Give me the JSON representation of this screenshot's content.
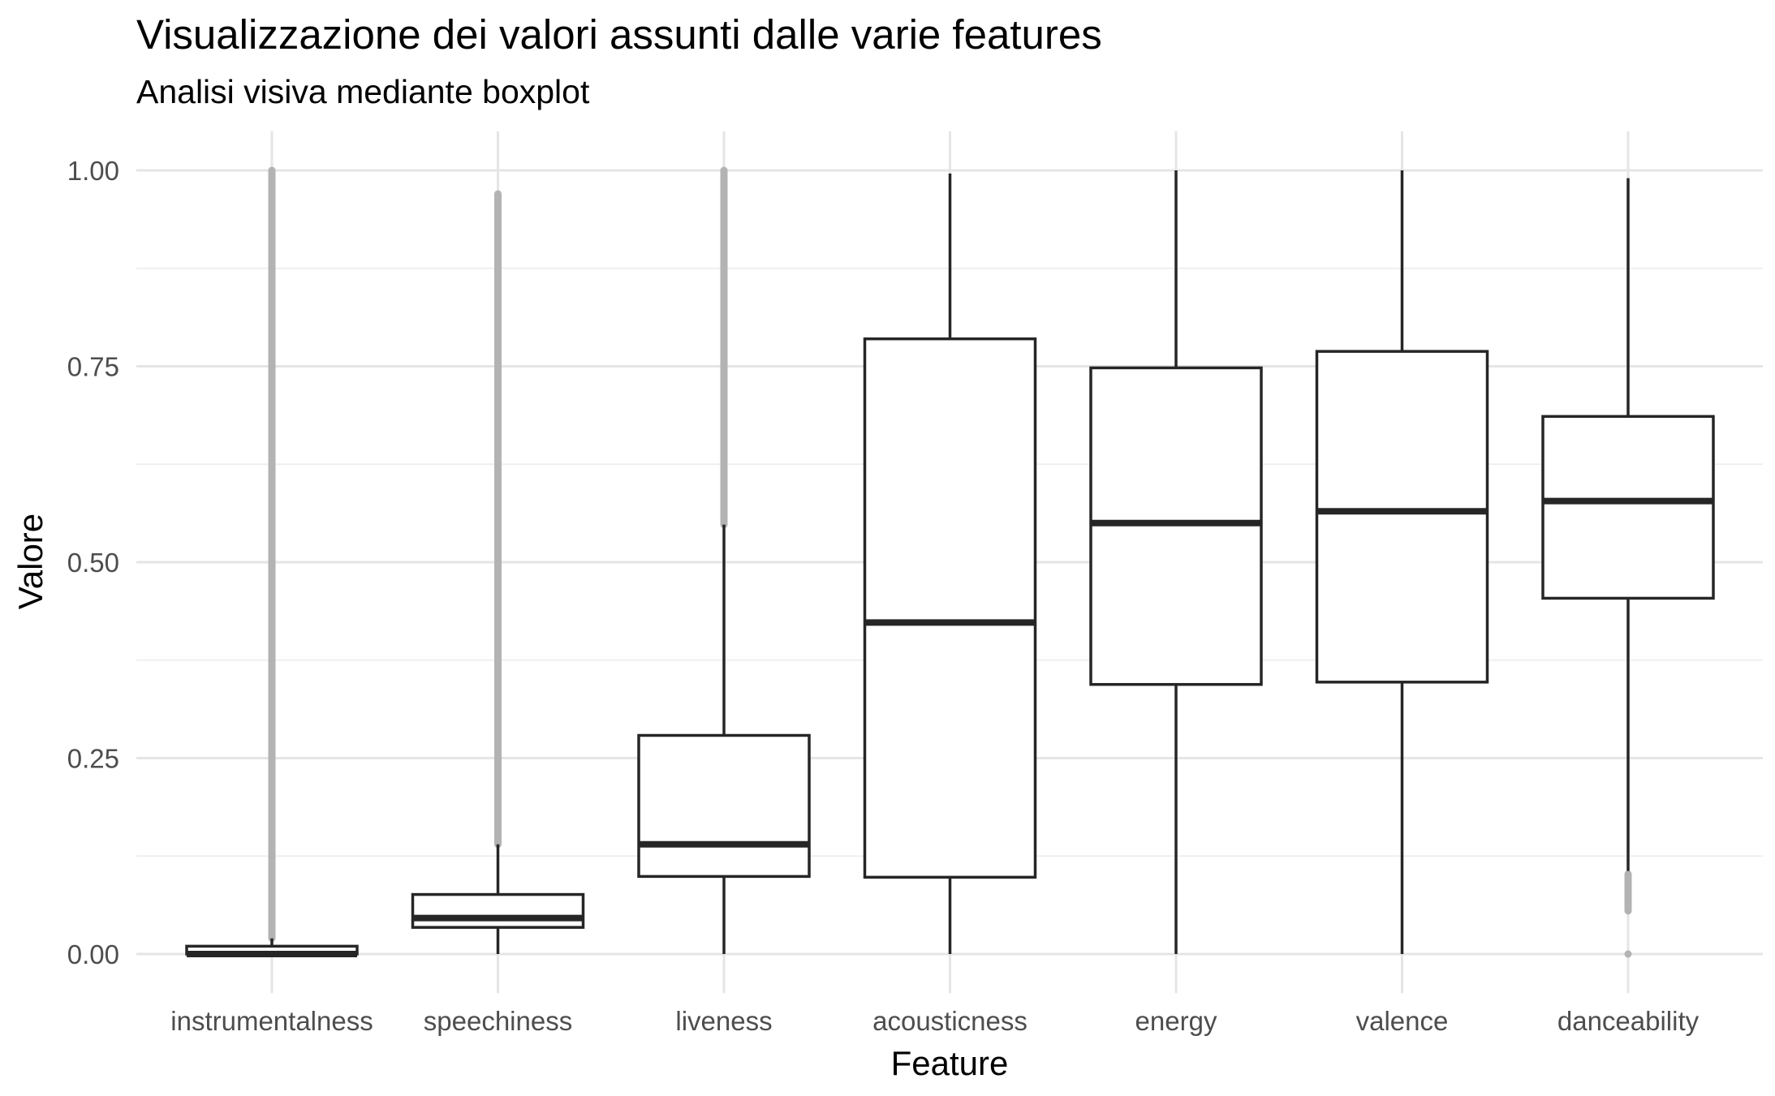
{
  "chart_data": {
    "type": "boxplot",
    "title": "Visualizzazione dei valori assunti dalle varie features",
    "subtitle": "Analisi visiva mediante boxplot",
    "xlabel": "Feature",
    "ylabel": "Valore",
    "ylim": [
      -0.05,
      1.05
    ],
    "yticks": [
      0.0,
      0.25,
      0.5,
      0.75,
      1.0
    ],
    "ytick_labels": [
      "0.00",
      "0.25",
      "0.50",
      "0.75",
      "1.00"
    ],
    "grid": true,
    "legend": "none",
    "colors": {
      "box_stroke": "#262626",
      "outlier": "#b3b3b3",
      "grid_major": "#e5e5e5",
      "grid_minor": "#efefef"
    },
    "categories": [
      "instrumentalness",
      "speechiness",
      "liveness",
      "acousticness",
      "energy",
      "valence",
      "danceability"
    ],
    "boxes": [
      {
        "category": "instrumentalness",
        "lower_whisker": 0.0,
        "q1": 0.0,
        "median": 0.0,
        "q3": 0.01,
        "upper_whisker": 0.02,
        "outlier_ranges": [
          [
            0.02,
            1.0
          ]
        ]
      },
      {
        "category": "speechiness",
        "lower_whisker": 0.0,
        "q1": 0.034,
        "median": 0.046,
        "q3": 0.076,
        "upper_whisker": 0.14,
        "outlier_ranges": [
          [
            0.14,
            0.97
          ]
        ]
      },
      {
        "category": "liveness",
        "lower_whisker": 0.0,
        "q1": 0.099,
        "median": 0.14,
        "q3": 0.279,
        "upper_whisker": 0.548,
        "outlier_ranges": [
          [
            0.548,
            1.0
          ]
        ]
      },
      {
        "category": "acousticness",
        "lower_whisker": 0.0,
        "q1": 0.098,
        "median": 0.423,
        "q3": 0.785,
        "upper_whisker": 0.996,
        "outlier_ranges": []
      },
      {
        "category": "energy",
        "lower_whisker": 0.0,
        "q1": 0.344,
        "median": 0.55,
        "q3": 0.748,
        "upper_whisker": 1.0,
        "outlier_ranges": []
      },
      {
        "category": "valence",
        "lower_whisker": 0.0,
        "q1": 0.347,
        "median": 0.565,
        "q3": 0.769,
        "upper_whisker": 1.0,
        "outlier_ranges": []
      },
      {
        "category": "danceability",
        "lower_whisker": 0.106,
        "q1": 0.454,
        "median": 0.578,
        "q3": 0.686,
        "upper_whisker": 0.99,
        "outlier_ranges": [
          [
            0.055,
            0.102
          ]
        ],
        "outlier_points": [
          0.0
        ]
      }
    ]
  }
}
